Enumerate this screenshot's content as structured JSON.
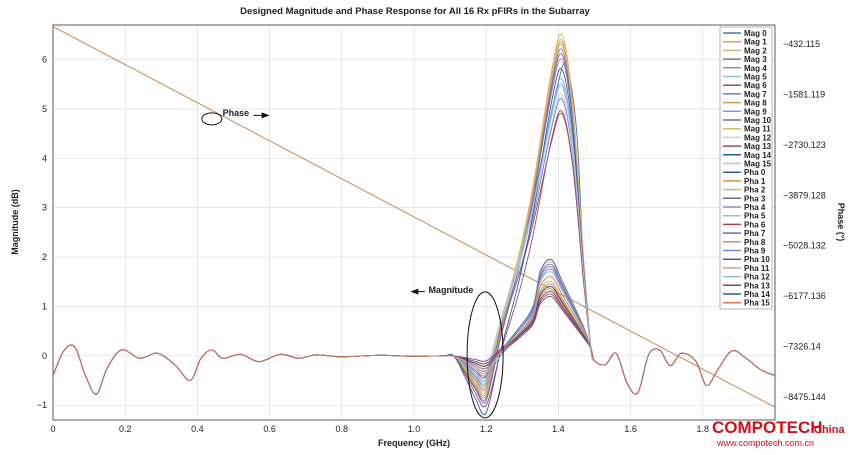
{
  "chart_data": {
    "type": "line",
    "title": "Designed Magnitude and Phase Response for All 16 Rx pFIRs in the Subarray",
    "xlabel": "Frequency (GHz)",
    "ylabel": "Magnitude (dB)",
    "y2label": "Phase (°)",
    "xlim": [
      0,
      2.0
    ],
    "ylim": [
      -1.3,
      6.7
    ],
    "x_ticks": [
      0,
      0.2,
      0.4,
      0.6,
      0.8,
      1.0,
      1.2,
      1.4,
      1.6,
      1.8
    ],
    "x_tick_labels": [
      "0",
      "0.2",
      "0.4",
      "0.6",
      "0.8",
      "1.0",
      "1.2",
      "1.4",
      "1.6",
      "1.8"
    ],
    "y_ticks": [
      -1,
      0,
      1,
      2,
      3,
      4,
      5,
      6
    ],
    "y_tick_labels": [
      "−1",
      "0",
      "1",
      "2",
      "3",
      "4",
      "5",
      "6"
    ],
    "y2_ticks": [
      -432.115,
      -1581.119,
      -2730.123,
      -3879.128,
      -5028.132,
      -6177.136,
      -7326.14,
      -8475.144
    ],
    "y2_tick_labels": [
      "−432.115",
      "−1581.119",
      "−2730.123",
      "−3879.128",
      "−5028.132",
      "−6177.136",
      "−7326.14",
      "−8475.144"
    ],
    "grid": true,
    "legend_position": "right",
    "magnitude_common": {
      "x": [
        0.0,
        0.03,
        0.06,
        0.09,
        0.12,
        0.15,
        0.19,
        0.24,
        0.29,
        0.34,
        0.38,
        0.41,
        0.44,
        0.47,
        0.52,
        0.57,
        0.63,
        0.68,
        0.73,
        0.8,
        0.9,
        1.0,
        1.08,
        1.11
      ],
      "y": [
        -0.4,
        0.1,
        0.18,
        -0.4,
        -0.78,
        -0.25,
        0.12,
        -0.05,
        0.05,
        -0.2,
        -0.5,
        -0.05,
        0.12,
        -0.05,
        0.03,
        -0.12,
        0.03,
        -0.05,
        0.02,
        -0.02,
        0.01,
        -0.01,
        0.0,
        0.0
      ]
    },
    "magnitude_tail": {
      "x": [
        1.5,
        1.53,
        1.56,
        1.59,
        1.62,
        1.65,
        1.68,
        1.71,
        1.74,
        1.78,
        1.81,
        1.84,
        1.88,
        1.92,
        1.96,
        2.0
      ],
      "y": [
        -0.1,
        -0.18,
        0.05,
        -0.55,
        -0.75,
        0.02,
        0.12,
        -0.2,
        0.05,
        -0.1,
        -0.6,
        -0.3,
        0.1,
        -0.05,
        -0.28,
        -0.4
      ]
    },
    "series": [
      {
        "name": "Mag 0",
        "color": "#4a6fb5",
        "peak_x": 1.42,
        "peak": 5.9,
        "low": -0.6
      },
      {
        "name": "Mag 1",
        "color": "#e0a63e",
        "peak_x": 1.41,
        "peak": 6.5,
        "low": -0.75
      },
      {
        "name": "Mag 2",
        "color": "#cfb882",
        "peak_x": 1.41,
        "peak": 6.4,
        "low": -0.7
      },
      {
        "name": "Mag 3",
        "color": "#8a6ab0",
        "peak_x": 1.41,
        "peak": 6.2,
        "low": -0.85
      },
      {
        "name": "Mag 4",
        "color": "#9e88c8",
        "peak_x": 1.41,
        "peak": 6.0,
        "low": -0.65
      },
      {
        "name": "Mag 5",
        "color": "#88c3db",
        "peak_x": 1.41,
        "peak": 5.5,
        "low": -0.5
      },
      {
        "name": "Mag 6",
        "color": "#b0455a",
        "peak_x": 1.41,
        "peak": 4.9,
        "low": -0.4
      },
      {
        "name": "Mag 7",
        "color": "#6a7ec2",
        "peak_x": 1.41,
        "peak": 5.2,
        "low": -0.55
      },
      {
        "name": "Mag 8",
        "color": "#c8a050",
        "peak_x": 1.41,
        "peak": 6.3,
        "low": -0.8
      },
      {
        "name": "Mag 9",
        "color": "#7aa0d0",
        "peak_x": 1.41,
        "peak": 5.6,
        "low": -0.45
      },
      {
        "name": "Mag 10",
        "color": "#8060a8",
        "peak_x": 1.41,
        "peak": 6.1,
        "low": -0.9
      },
      {
        "name": "Mag 11",
        "color": "#d8b86a",
        "peak_x": 1.41,
        "peak": 6.35,
        "low": -0.6
      },
      {
        "name": "Mag 12",
        "color": "#c9cde0",
        "peak_x": 1.41,
        "peak": 5.3,
        "low": -0.35
      },
      {
        "name": "Mag 13",
        "color": "#9a4a6a",
        "peak_x": 1.41,
        "peak": 4.95,
        "low": -1.0
      },
      {
        "name": "Mag 14",
        "color": "#2c5aa0",
        "peak_x": 1.41,
        "peak": 5.8,
        "low": -1.15
      },
      {
        "name": "Mag 15",
        "color": "#a8c8e0",
        "peak_x": 1.41,
        "peak": 5.45,
        "low": -0.3
      },
      {
        "name": "Pha 0",
        "color": "#3060a8",
        "peak_x": 1.38,
        "peak": 1.95,
        "low": -0.3
      },
      {
        "name": "Pha 1",
        "color": "#e09030",
        "peak_x": 1.38,
        "peak": 1.35,
        "low": -0.2
      },
      {
        "name": "Pha 2",
        "color": "#d4b070",
        "peak_x": 1.38,
        "peak": 1.9,
        "low": -0.35
      },
      {
        "name": "Pha 3",
        "color": "#7a5a9e",
        "peak_x": 1.38,
        "peak": 1.4,
        "low": -0.25
      },
      {
        "name": "Pha 4",
        "color": "#9a80c0",
        "peak_x": 1.38,
        "peak": 1.8,
        "low": -0.4
      },
      {
        "name": "Pha 5",
        "color": "#80c8d8",
        "peak_x": 1.38,
        "peak": 1.3,
        "low": -0.15
      },
      {
        "name": "Pha 6",
        "color": "#a84050",
        "peak_x": 1.38,
        "peak": 1.25,
        "low": -0.2
      },
      {
        "name": "Pha 7",
        "color": "#5a70b8",
        "peak_x": 1.38,
        "peak": 1.85,
        "low": -0.3
      },
      {
        "name": "Pha 8",
        "color": "#c89058",
        "peak_x": 1.38,
        "peak": 1.45,
        "low": -0.2
      },
      {
        "name": "Pha 9",
        "color": "#6a90c8",
        "peak_x": 1.38,
        "peak": 1.75,
        "low": -0.25
      },
      {
        "name": "Pha 10",
        "color": "#704c98",
        "peak_x": 1.38,
        "peak": 1.2,
        "low": -0.1
      },
      {
        "name": "Pha 11",
        "color": "#d0a860",
        "peak_x": 1.38,
        "peak": 1.5,
        "low": -0.2
      },
      {
        "name": "Pha 12",
        "color": "#90b8d0",
        "peak_x": 1.38,
        "peak": 1.7,
        "low": -0.3
      },
      {
        "name": "Pha 13",
        "color": "#904060",
        "peak_x": 1.38,
        "peak": 1.3,
        "low": -0.15
      },
      {
        "name": "Pha 14",
        "color": "#2a5898",
        "peak_x": 1.38,
        "peak": 1.4,
        "low": -0.2
      },
      {
        "name": "Pha 15",
        "color": "#e07850",
        "peak_x": 1.38,
        "peak": 1.6,
        "low": -0.25
      }
    ],
    "phase_line": {
      "color": "#c98a55",
      "x": [
        0,
        2.0
      ],
      "y": [
        -36,
        -8710
      ]
    },
    "annotations": [
      {
        "text": "Phase",
        "x": 0.47,
        "y": 4.8,
        "arrow": "right"
      },
      {
        "text": "Magnitude",
        "x": 1.2,
        "y": 1.3,
        "arrow": "left"
      }
    ]
  },
  "watermark": {
    "brand": "COMPOTECH",
    "suffix": "China",
    "url": "www.compotech.com.cn"
  }
}
